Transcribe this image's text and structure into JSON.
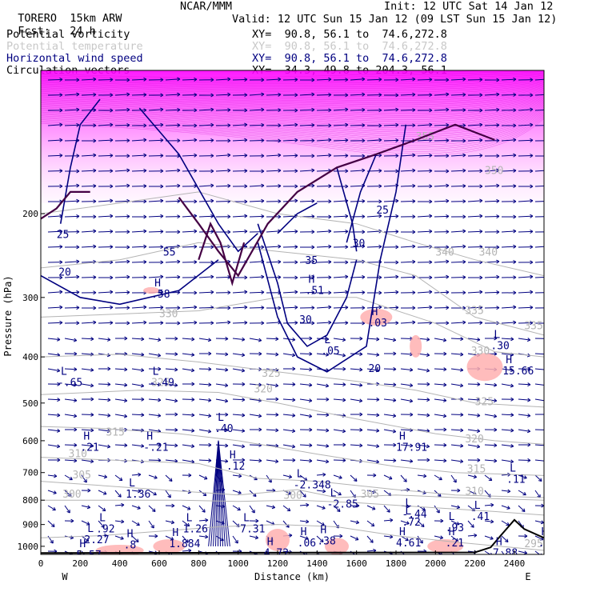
{
  "header": {
    "model": "TORERO",
    "resolution": "15km ARW",
    "center": "NCAR/MMM",
    "init": "Init: 12 UTC Sat 14 Jan 12",
    "fcst_label": "Fcst:",
    "fcst_value": "24 h",
    "valid": "Valid: 12 UTC Sun 15 Jan 12 (09 LST Sun 15 Jan 12)"
  },
  "legend": [
    {
      "label": "Potential vorticity",
      "xy": "XY=  90.8, 56.1 to  74.6,272.8",
      "color": "#000000"
    },
    {
      "label": "Potential temperature",
      "xy": "XY=  90.8, 56.1 to  74.6,272.8",
      "color": "#c8c8c8"
    },
    {
      "label": "Horizontal wind speed",
      "xy": "XY=  90.8, 56.1 to  74.6,272.8",
      "color": "#000080"
    },
    {
      "label": "Circulation vectors",
      "xy": "XY=  34.3, 49.8 to 204.3, 56.1",
      "color": "#000000"
    }
  ],
  "chart_data": {
    "type": "cross-section",
    "ylabel": "Pressure (hPa)",
    "xlabel": "Distance (km)",
    "x_ticks": [
      0,
      200,
      400,
      600,
      800,
      1000,
      1200,
      1400,
      1600,
      1800,
      2000,
      2200,
      2400
    ],
    "y_ticks": [
      200,
      300,
      400,
      500,
      600,
      700,
      800,
      900,
      1000
    ],
    "xlim": [
      0,
      2550
    ],
    "ylim": [
      1040,
      100
    ],
    "y_scale": "log",
    "x_end_labels": {
      "left": "W",
      "right": "E"
    },
    "theta_contours": [
      {
        "label": "295",
        "points": [
          [
            0,
            960
          ],
          [
            300,
            950
          ],
          [
            600,
            930
          ],
          [
            900,
            910
          ],
          [
            1200,
            900
          ],
          [
            1500,
            910
          ],
          [
            1800,
            950
          ],
          [
            2100,
            980
          ],
          [
            2550,
            1020
          ]
        ],
        "label_at": [
          2450,
          1005
        ]
      },
      {
        "label": "300",
        "points": [
          [
            0,
            800
          ],
          [
            300,
            800
          ],
          [
            700,
            800
          ],
          [
            1000,
            805
          ],
          [
            1300,
            800
          ],
          [
            1600,
            810
          ],
          [
            2000,
            830
          ],
          [
            2300,
            845
          ],
          [
            2550,
            860
          ]
        ],
        "label_at": [
          1230,
          795
        ]
      },
      {
        "label": "305",
        "points": [
          [
            0,
            730
          ],
          [
            300,
            745
          ],
          [
            700,
            765
          ],
          [
            1000,
            780
          ],
          [
            1300,
            760
          ],
          [
            1500,
            790
          ],
          [
            1800,
            780
          ],
          [
            2100,
            790
          ],
          [
            2550,
            800
          ]
        ],
        "label_at": [
          1620,
          790
        ]
      },
      {
        "label": "310",
        "points": [
          [
            0,
            650
          ],
          [
            400,
            660
          ],
          [
            800,
            670
          ],
          [
            1100,
            720
          ],
          [
            1400,
            730
          ],
          [
            1800,
            760
          ],
          [
            2100,
            780
          ],
          [
            2550,
            790
          ]
        ],
        "label_at": [
          2150,
          780
        ]
      },
      {
        "label": "315",
        "points": [
          [
            0,
            560
          ],
          [
            300,
            565
          ],
          [
            700,
            580
          ],
          [
            1000,
            600
          ],
          [
            1400,
            640
          ],
          [
            1800,
            680
          ],
          [
            2100,
            700
          ],
          [
            2550,
            710
          ]
        ],
        "label_at": [
          2160,
          700
        ]
      },
      {
        "label": "320",
        "points": [
          [
            0,
            480
          ],
          [
            500,
            470
          ],
          [
            900,
            475
          ],
          [
            1200,
            500
          ],
          [
            1600,
            540
          ],
          [
            2000,
            580
          ],
          [
            2300,
            600
          ],
          [
            2550,
            610
          ]
        ],
        "label_at": [
          2150,
          605
        ]
      },
      {
        "label": "325",
        "points": [
          [
            0,
            400
          ],
          [
            400,
            395
          ],
          [
            800,
            410
          ],
          [
            1200,
            430
          ],
          [
            1600,
            450
          ],
          [
            1900,
            470
          ],
          [
            2200,
            500
          ],
          [
            2550,
            510
          ]
        ],
        "label_at": [
          2200,
          505
        ]
      },
      {
        "label": "330",
        "points": [
          [
            0,
            330
          ],
          [
            400,
            325
          ],
          [
            800,
            320
          ],
          [
            1200,
            300
          ],
          [
            1600,
            300
          ],
          [
            2000,
            340
          ],
          [
            2300,
            390
          ],
          [
            2550,
            400
          ]
        ],
        "label_at": [
          2180,
          395
        ]
      },
      {
        "label": "335",
        "points": [
          [
            0,
            260
          ],
          [
            400,
            250
          ],
          [
            800,
            230
          ],
          [
            1200,
            240
          ],
          [
            1600,
            250
          ],
          [
            1900,
            270
          ],
          [
            2200,
            330
          ],
          [
            2550,
            360
          ]
        ],
        "label_at": [
          2150,
          325
        ]
      },
      {
        "label": "340",
        "points": [
          [
            0,
            200
          ],
          [
            400,
            190
          ],
          [
            800,
            180
          ],
          [
            1200,
            200
          ],
          [
            1600,
            210
          ],
          [
            1900,
            230
          ],
          [
            2200,
            250
          ],
          [
            2550,
            270
          ]
        ],
        "label_at": [
          2220,
          245
        ]
      }
    ],
    "theta_extra_labels": [
      {
        "text": "315",
        "at": [
          330,
          585
        ]
      },
      {
        "text": "310",
        "at": [
          140,
          650
        ]
      },
      {
        "text": "305",
        "at": [
          160,
          720
        ]
      },
      {
        "text": "300",
        "at": [
          110,
          790
        ]
      },
      {
        "text": "320",
        "at": [
          1080,
          475
        ]
      },
      {
        "text": "325",
        "at": [
          1120,
          440
        ]
      },
      {
        "text": "330",
        "at": [
          600,
          330
        ]
      },
      {
        "text": "335",
        "at": [
          2450,
          350
        ]
      },
      {
        "text": "350",
        "at": [
          2250,
          165
        ]
      },
      {
        "text": "355",
        "at": [
          1900,
          140
        ]
      },
      {
        "text": "340",
        "at": [
          2000,
          245
        ]
      },
      {
        "text": "325",
        "at": [
          560,
          460
        ]
      }
    ],
    "wind_contours": [
      {
        "label": "25",
        "points": [
          [
            100,
            210
          ],
          [
            150,
            160
          ],
          [
            200,
            130
          ],
          [
            300,
            115
          ]
        ],
        "label_at": [
          80,
          225
        ]
      },
      {
        "label": "20",
        "points": [
          [
            0,
            270
          ],
          [
            200,
            300
          ],
          [
            400,
            310
          ],
          [
            700,
            290
          ],
          [
            900,
            250
          ]
        ],
        "label_at": [
          90,
          270
        ]
      },
      {
        "label": "55",
        "points": [
          [
            500,
            120
          ],
          [
            700,
            150
          ],
          [
            900,
            210
          ],
          [
            1000,
            240
          ],
          [
            1100,
            220
          ]
        ],
        "label_at": [
          620,
          245
        ]
      },
      {
        "label": "30",
        "points": [
          [
            1100,
            210
          ],
          [
            1200,
            280
          ],
          [
            1250,
            340
          ],
          [
            1350,
            380
          ],
          [
            1450,
            360
          ],
          [
            1550,
            300
          ],
          [
            1600,
            250
          ]
        ],
        "label_at": [
          1310,
          340
        ]
      },
      {
        "label": "20",
        "points": [
          [
            1100,
            230
          ],
          [
            1200,
            330
          ],
          [
            1300,
            400
          ],
          [
            1450,
            430
          ],
          [
            1650,
            380
          ],
          [
            1720,
            250
          ],
          [
            1800,
            180
          ],
          [
            1850,
            130
          ]
        ],
        "label_at": [
          1660,
          430
        ]
      },
      {
        "label": "25",
        "points": [
          [
            1550,
            230
          ],
          [
            1620,
            180
          ],
          [
            1700,
            150
          ]
        ],
        "label_at": [
          1700,
          200
        ]
      },
      {
        "label": "30",
        "points": [
          [
            1500,
            160
          ],
          [
            1580,
            210
          ],
          [
            1600,
            240
          ]
        ],
        "label_at": [
          1580,
          235
        ]
      },
      {
        "label": "35",
        "points": [
          [
            1200,
            220
          ],
          [
            1300,
            200
          ],
          [
            1400,
            190
          ]
        ],
        "label_at": [
          1340,
          255
        ]
      }
    ],
    "pv_contours": [
      {
        "points": [
          [
            0,
            205
          ],
          [
            80,
            195
          ],
          [
            150,
            180
          ],
          [
            250,
            180
          ]
        ]
      },
      {
        "points": [
          [
            700,
            185
          ],
          [
            800,
            210
          ],
          [
            900,
            240
          ],
          [
            1000,
            270
          ],
          [
            1150,
            210
          ],
          [
            1300,
            180
          ],
          [
            1500,
            160
          ],
          [
            1700,
            150
          ],
          [
            1900,
            140
          ],
          [
            2100,
            130
          ],
          [
            2300,
            140
          ]
        ]
      },
      {
        "points": [
          [
            800,
            250
          ],
          [
            860,
            210
          ],
          [
            910,
            230
          ],
          [
            970,
            280
          ],
          [
            1030,
            230
          ]
        ]
      }
    ],
    "highs_lows": [
      {
        "type": "L",
        "value": "-.65",
        "at": [
          85,
          460
        ]
      },
      {
        "type": "L",
        "value": "-.49",
        "at": [
          550,
          460
        ]
      },
      {
        "type": "L",
        "value": ".40",
        "at": [
          880,
          575
        ]
      },
      {
        "type": "H",
        "value": ".21",
        "at": [
          200,
          630
        ]
      },
      {
        "type": "H",
        "value": "-.21",
        "at": [
          520,
          630
        ]
      },
      {
        "type": "H",
        "value": "17.91",
        "at": [
          1800,
          630
        ]
      },
      {
        "type": "L",
        "value": "-2.348",
        "at": [
          1280,
          755
        ]
      },
      {
        "type": "L",
        "value": "-2.85",
        "at": [
          1450,
          830
        ]
      },
      {
        "type": "L",
        "value": "-.44",
        "at": [
          1830,
          870
        ]
      },
      {
        "type": "L",
        "value": ".41",
        "at": [
          2180,
          880
        ]
      },
      {
        "type": "L",
        "value": ".72",
        "at": [
          1830,
          905
        ]
      },
      {
        "type": "L",
        "value": ".93",
        "at": [
          2050,
          930
        ]
      },
      {
        "type": "L",
        "value": ".11",
        "at": [
          2360,
          735
        ]
      },
      {
        "type": "H",
        "value": "15.66",
        "at": [
          2340,
          435
        ]
      },
      {
        "type": "L",
        "value": ".30",
        "at": [
          2280,
          385
        ]
      },
      {
        "type": "H",
        "value": ".03",
        "at": [
          1660,
          345
        ]
      },
      {
        "type": "L",
        "value": ".05",
        "at": [
          1420,
          395
        ]
      },
      {
        "type": "H",
        "value": ".58",
        "at": [
          560,
          300
        ]
      },
      {
        "type": "H",
        "value": ".51",
        "at": [
          1340,
          295
        ]
      },
      {
        "type": "L",
        "value": "1.36",
        "at": [
          430,
          790
        ]
      },
      {
        "type": "L",
        "value": "1.26",
        "at": [
          720,
          935
        ]
      },
      {
        "type": "L",
        "value": "7.31",
        "at": [
          1010,
          935
        ]
      },
      {
        "type": "L",
        "value": ".92",
        "at": [
          280,
          935
        ]
      },
      {
        "type": "L",
        "value": "2.27",
        "at": [
          220,
          985
        ]
      },
      {
        "type": "H",
        "value": ".8",
        "at": [
          420,
          1010
        ]
      },
      {
        "type": "H",
        "value": "1.884",
        "at": [
          650,
          1005
        ]
      },
      {
        "type": "H",
        "value": ".06",
        "at": [
          1300,
          1000
        ]
      },
      {
        "type": "H",
        "value": ".38",
        "at": [
          1400,
          990
        ]
      },
      {
        "type": "H",
        "value": "4.61",
        "at": [
          1800,
          1000
        ]
      },
      {
        "type": "H",
        "value": ".21",
        "at": [
          2050,
          1000
        ]
      },
      {
        "type": "H",
        "value": ".28",
        "at": [
          2520,
          1000
        ]
      },
      {
        "type": "H",
        "value": "7.88",
        "at": [
          2290,
          1050
        ]
      },
      {
        "type": "H",
        "value": "5.57",
        "at": [
          180,
          1060
        ]
      },
      {
        "type": "H",
        "value": "4.72",
        "at": [
          1130,
          1050
        ]
      },
      {
        "type": "H",
        "value": ".12",
        "at": [
          940,
          690
        ]
      }
    ]
  }
}
